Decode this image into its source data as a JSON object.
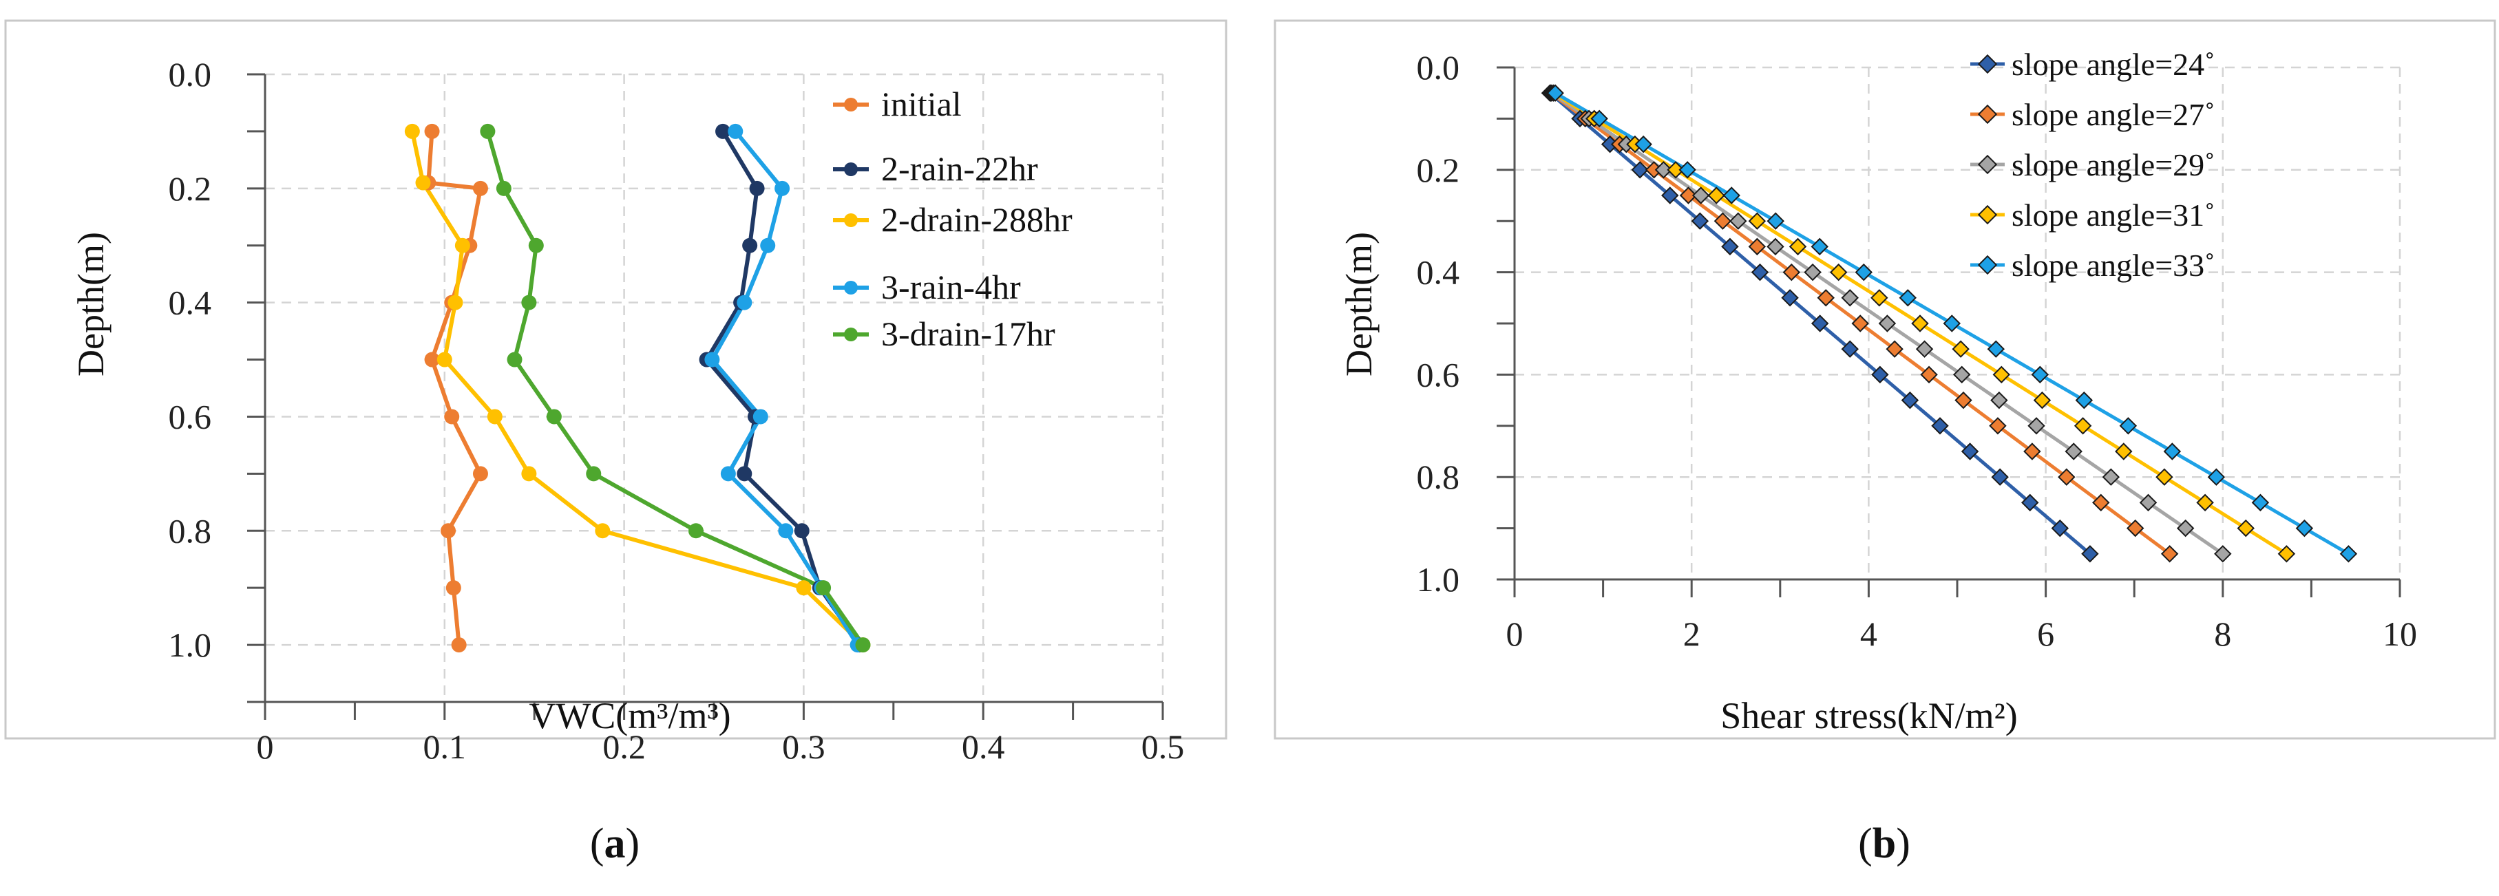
{
  "chart_data": [
    {
      "panel": "a",
      "type": "line",
      "title": "",
      "caption_letter": "a",
      "xlabel": "VWC(m³/m³)",
      "ylabel": "Depth(m)",
      "xlim": [
        0,
        0.5
      ],
      "ylim": [
        0,
        1.1
      ],
      "y_inverted": true,
      "xticks": [
        "0",
        "0.1",
        "0.2",
        "0.3",
        "0.4",
        "0.5"
      ],
      "xtick_values": [
        0,
        0.1,
        0.2,
        0.3,
        0.4,
        0.5
      ],
      "yticks": [
        "0.0",
        "0.2",
        "0.4",
        "0.6",
        "0.8",
        "1.0"
      ],
      "ytick_values": [
        0,
        0.2,
        0.4,
        0.6,
        0.8,
        1.0
      ],
      "grid": true,
      "legend_position": "top-right",
      "series": [
        {
          "name": "initial",
          "color": "#ED7D31",
          "points": [
            [
              0.093,
              0.1
            ],
            [
              0.091,
              0.19
            ],
            [
              0.12,
              0.2
            ],
            [
              0.114,
              0.3
            ],
            [
              0.104,
              0.4
            ],
            [
              0.093,
              0.5
            ],
            [
              0.104,
              0.6
            ],
            [
              0.12,
              0.7
            ],
            [
              0.102,
              0.8
            ],
            [
              0.105,
              0.9
            ],
            [
              0.108,
              1.0
            ]
          ]
        },
        {
          "name": "2-rain-22hr",
          "color": "#1F3864",
          "points": [
            [
              0.255,
              0.1
            ],
            [
              0.274,
              0.2
            ],
            [
              0.27,
              0.3
            ],
            [
              0.265,
              0.4
            ],
            [
              0.246,
              0.5
            ],
            [
              0.273,
              0.6
            ],
            [
              0.267,
              0.7
            ],
            [
              0.299,
              0.8
            ],
            [
              0.309,
              0.9
            ],
            [
              0.331,
              1.0
            ]
          ]
        },
        {
          "name": "2-drain-288hr",
          "color": "#FFC000",
          "points": [
            [
              0.082,
              0.1
            ],
            [
              0.088,
              0.19
            ],
            [
              0.11,
              0.3
            ],
            [
              0.106,
              0.4
            ],
            [
              0.1,
              0.5
            ],
            [
              0.128,
              0.6
            ],
            [
              0.147,
              0.7
            ],
            [
              0.188,
              0.8
            ],
            [
              0.3,
              0.9
            ],
            [
              0.333,
              1.0
            ]
          ]
        },
        {
          "name": "3-rain-4hr",
          "color": "#1EA1E6",
          "points": [
            [
              0.262,
              0.1
            ],
            [
              0.288,
              0.2
            ],
            [
              0.28,
              0.3
            ],
            [
              0.267,
              0.4
            ],
            [
              0.249,
              0.5
            ],
            [
              0.276,
              0.6
            ],
            [
              0.258,
              0.7
            ],
            [
              0.29,
              0.8
            ],
            [
              0.31,
              0.9
            ],
            [
              0.33,
              1.0
            ]
          ]
        },
        {
          "name": "3-drain-17hr",
          "color": "#4EA72E",
          "points": [
            [
              0.124,
              0.1
            ],
            [
              0.133,
              0.2
            ],
            [
              0.151,
              0.3
            ],
            [
              0.147,
              0.4
            ],
            [
              0.139,
              0.5
            ],
            [
              0.161,
              0.6
            ],
            [
              0.183,
              0.7
            ],
            [
              0.24,
              0.8
            ],
            [
              0.311,
              0.9
            ],
            [
              0.333,
              1.0
            ]
          ]
        }
      ]
    },
    {
      "panel": "b",
      "type": "line",
      "title": "",
      "caption_letter": "b",
      "xlabel": "Shear stress(kN/m²)",
      "ylabel": "Depth(m)",
      "xlim": [
        0,
        10
      ],
      "ylim": [
        0,
        1.0
      ],
      "y_inverted": true,
      "xticks": [
        "0",
        "2",
        "4",
        "6",
        "8",
        "10"
      ],
      "xtick_values": [
        0,
        2,
        4,
        6,
        8,
        10
      ],
      "yticks": [
        "0.0",
        "0.2",
        "0.4",
        "0.6",
        "0.8",
        "1.0"
      ],
      "ytick_values": [
        0,
        0.2,
        0.4,
        0.6,
        0.8,
        1.0
      ],
      "grid": true,
      "legend_position": "top-right",
      "depths": [
        0.05,
        0.1,
        0.15,
        0.2,
        0.25,
        0.3,
        0.35,
        0.4,
        0.45,
        0.5,
        0.55,
        0.6,
        0.65,
        0.7,
        0.75,
        0.8,
        0.85,
        0.9,
        0.95
      ],
      "series": [
        {
          "name": "slope angle=24˚",
          "color": "#2E5FA8",
          "x_at_0.05": 0.4,
          "x_at_0.95": 6.5
        },
        {
          "name": "slope angle=27˚",
          "color": "#ED7D31",
          "x_at_0.05": 0.41,
          "x_at_0.95": 7.4
        },
        {
          "name": "slope angle=29˚",
          "color": "#A5A5A5",
          "x_at_0.05": 0.42,
          "x_at_0.95": 8.0
        },
        {
          "name": "slope angle=31˚",
          "color": "#FFC000",
          "x_at_0.05": 0.44,
          "x_at_0.95": 8.72
        },
        {
          "name": "slope angle=33˚",
          "color": "#1EA1E6",
          "x_at_0.05": 0.46,
          "x_at_0.95": 9.42
        }
      ]
    }
  ]
}
